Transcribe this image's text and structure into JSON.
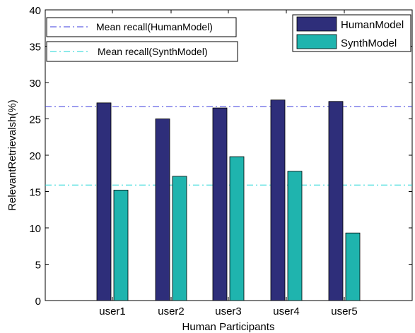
{
  "chart_data": {
    "type": "bar",
    "title": "",
    "xlabel": "Human Participants",
    "ylabel": "RelevantRetrievalsh(%)",
    "categories": [
      "user1",
      "user2",
      "user3",
      "user4",
      "user5"
    ],
    "series": [
      {
        "name": "HumanModel",
        "values": [
          27.2,
          25.0,
          26.5,
          27.6,
          27.4
        ],
        "color": "#2e2e7a"
      },
      {
        "name": "SynthModel",
        "values": [
          15.2,
          17.1,
          19.8,
          17.8,
          9.3
        ],
        "color": "#1fb4ae"
      }
    ],
    "reference_lines": [
      {
        "name": "Mean recall(HumanModel)",
        "value": 26.7,
        "color": "#3b3bdc",
        "style": "dash-dot"
      },
      {
        "name": "Mean recall(SynthModel)",
        "value": 15.9,
        "color": "#19d6d6",
        "style": "dash-dot"
      }
    ],
    "ylim": [
      0,
      40
    ],
    "yticks": [
      0,
      5,
      10,
      15,
      20,
      25,
      30,
      35,
      40
    ],
    "grid": false,
    "legend": {
      "series_placement": "top-right",
      "reference_placement": "top-left"
    }
  }
}
